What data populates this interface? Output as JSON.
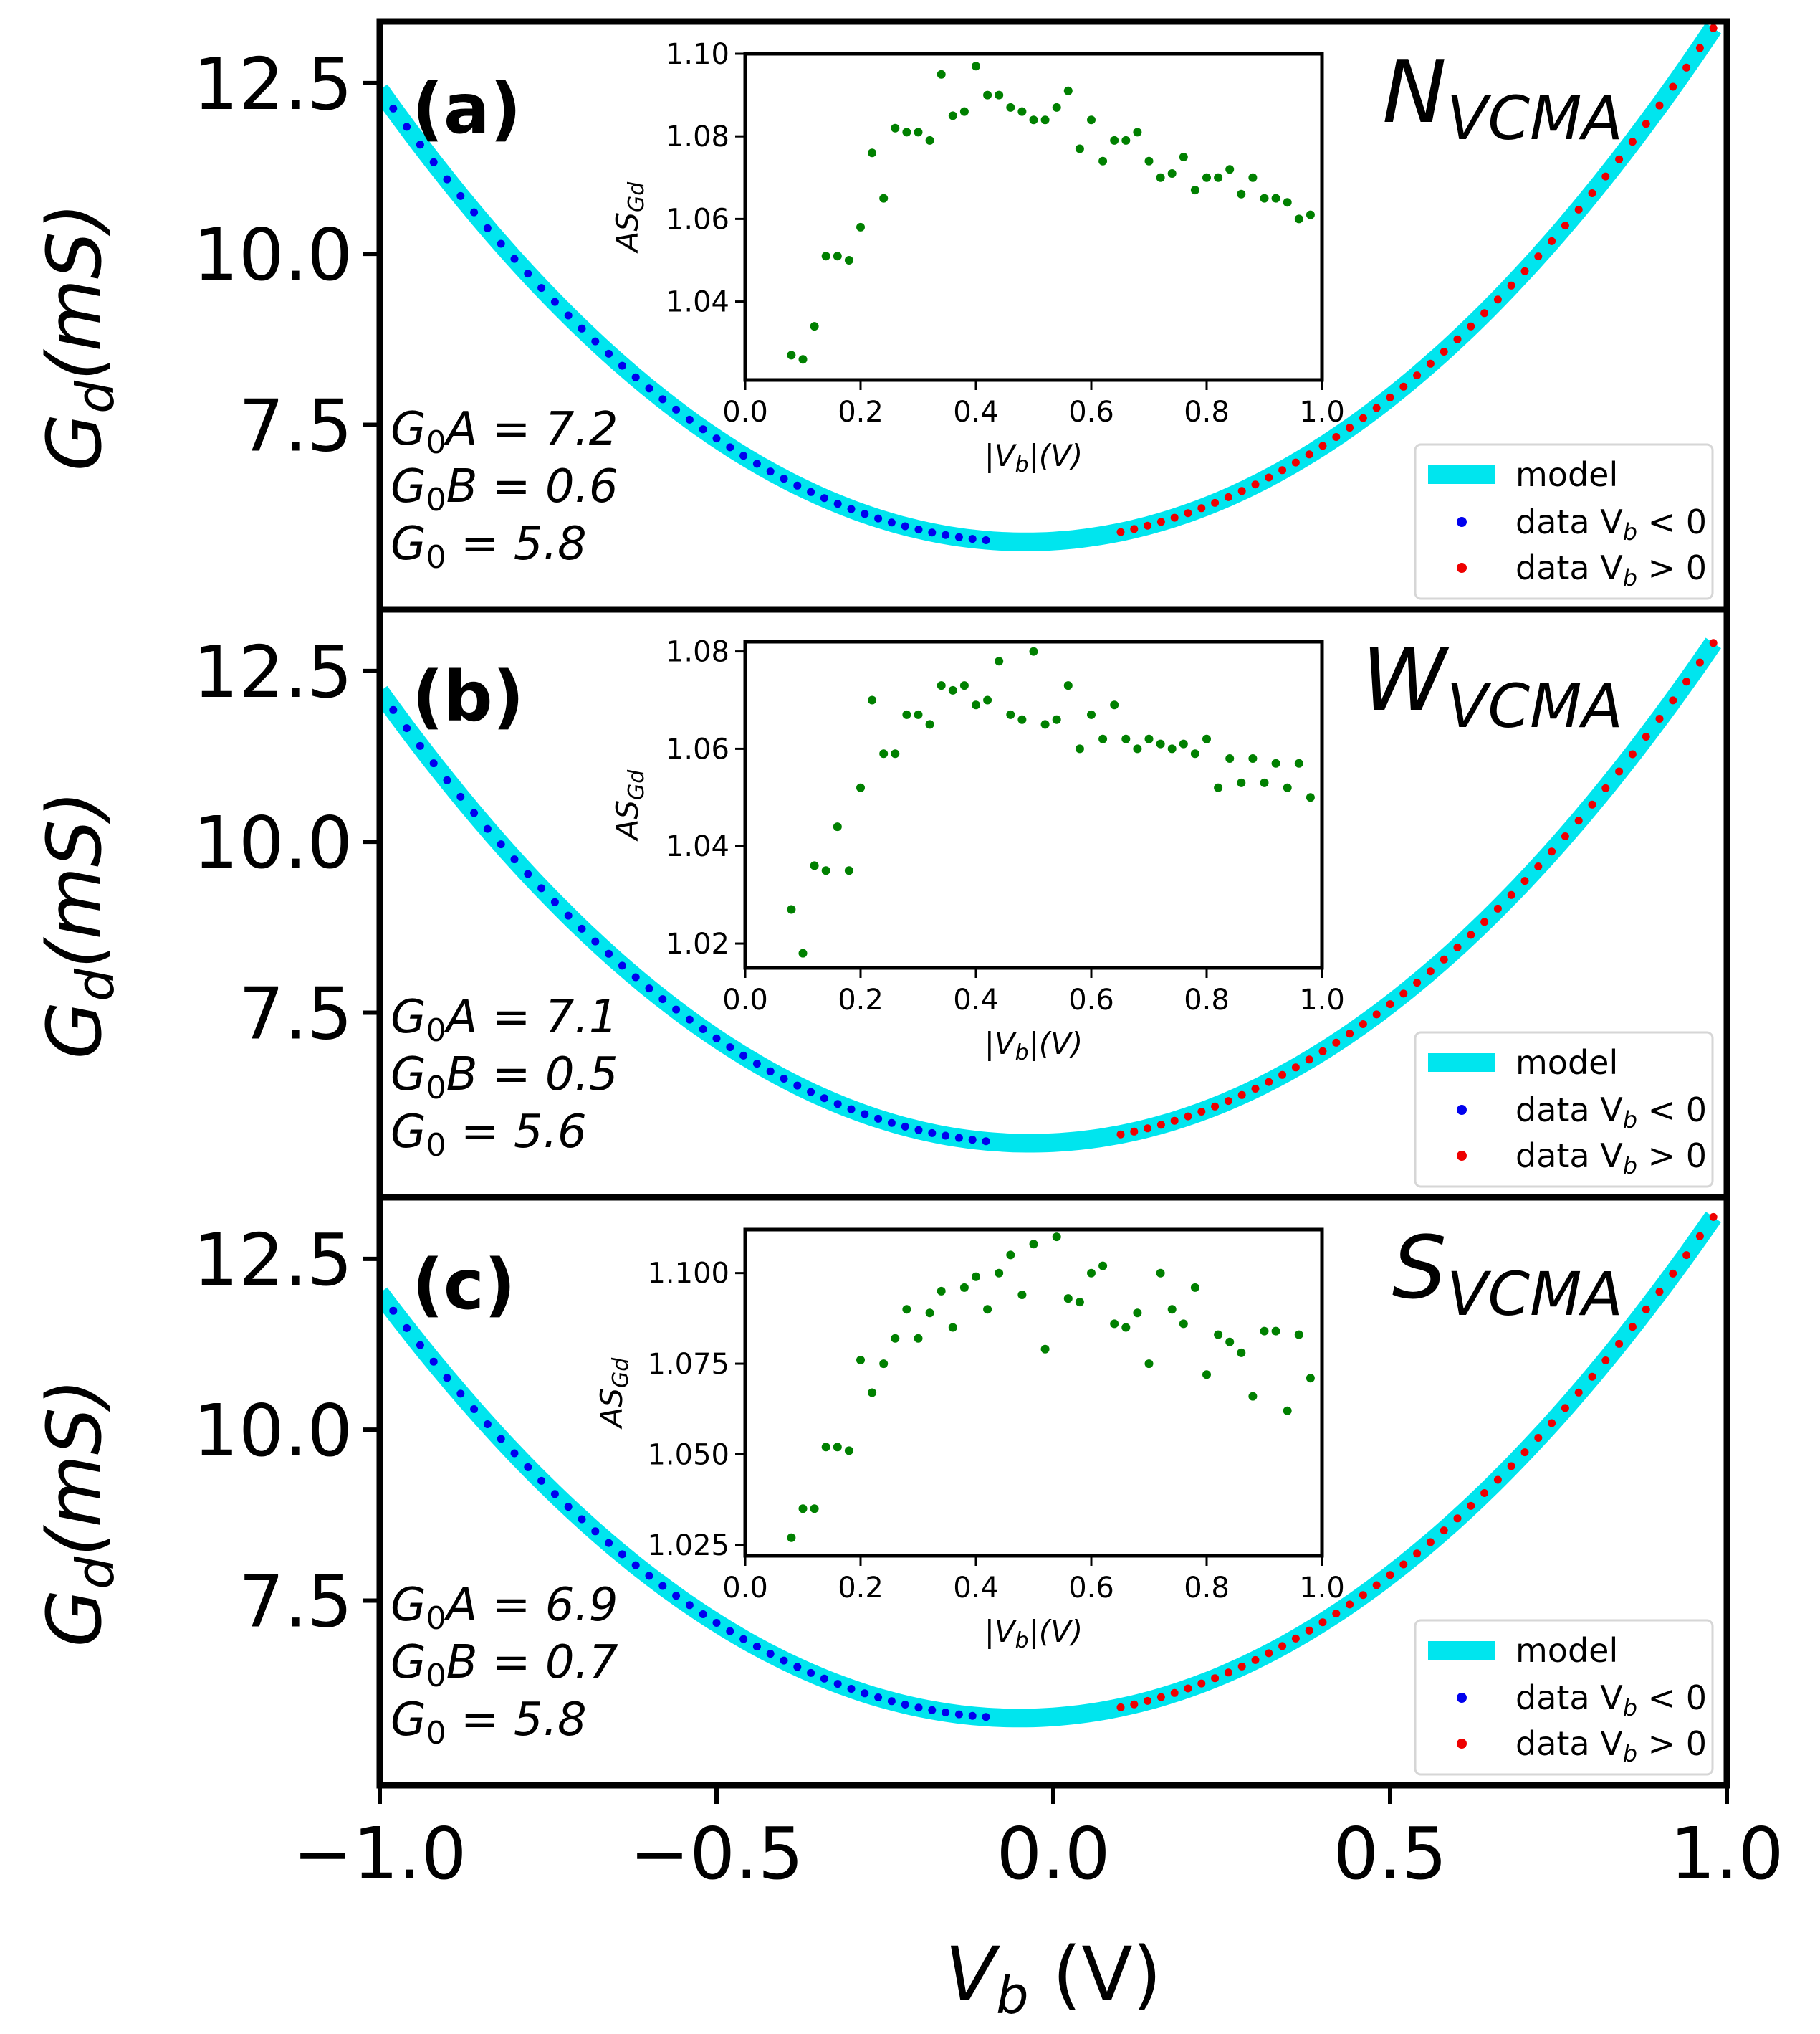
{
  "figure": {
    "xlabel_main": "V",
    "xlabel_sub": "b",
    "xlabel_unit": " (V)",
    "ylabel_main": "G",
    "ylabel_sub": "d",
    "ylabel_unit": "(mS)",
    "inset_ylabel_main": "AS",
    "inset_ylabel_sub": "Gd",
    "inset_xlabel_left": "|V",
    "inset_xlabel_sub": "b",
    "inset_xlabel_right": "|(V)",
    "legend_model": "model",
    "legend_neg_prefix": "data V",
    "legend_neg_sub": "b",
    "legend_neg_suffix": " < 0",
    "legend_pos_prefix": "data V",
    "legend_pos_sub": "b",
    "legend_pos_suffix": " > 0"
  },
  "colors": {
    "model": "#00e5ee",
    "neg": "#0000ee",
    "pos": "#ee0000",
    "inset": "#008000",
    "axis": "#000000"
  },
  "chart_data": [
    {
      "type": "scatter",
      "panel": "(a)",
      "title_main": "N",
      "title_sub": "VCMA",
      "params": [
        "G₀A = 7.2",
        "G₀B = 0.6",
        "G₀ = 5.8"
      ],
      "xlim": [
        -1.0,
        1.0
      ],
      "ylim": [
        4.8,
        13.4
      ],
      "xticks": [
        -1.0,
        -0.5,
        0.0,
        0.5,
        1.0
      ],
      "xtick_labels": [
        "−1.0",
        "−0.5",
        "0.0",
        "0.5",
        "1.0"
      ],
      "yticks": [
        7.5,
        10.0,
        12.5
      ],
      "ytick_labels": [
        "7.5",
        "10.0",
        "12.5"
      ],
      "model": {
        "G0": 5.8,
        "G0A": 7.2,
        "G0B": 0.6,
        "x_range": [
          -1.0,
          0.98
        ]
      },
      "data_neg": {
        "x_range": [
          -0.98,
          -0.1
        ],
        "n": 45
      },
      "data_pos": {
        "x_range": [
          0.1,
          0.98
        ],
        "n": 45
      },
      "inset": {
        "type": "scatter",
        "xlim": [
          0.0,
          1.0
        ],
        "ylim": [
          1.021,
          1.1
        ],
        "xticks": [
          0.0,
          0.2,
          0.4,
          0.6,
          0.8,
          1.0
        ],
        "xtick_labels": [
          "0.0",
          "0.2",
          "0.4",
          "0.6",
          "0.8",
          "1.0"
        ],
        "yticks": [
          1.04,
          1.06,
          1.08,
          1.1
        ],
        "ytick_labels": [
          "1.04",
          "1.06",
          "1.08",
          "1.10"
        ],
        "points": [
          [
            0.08,
            1.027
          ],
          [
            0.1,
            1.026
          ],
          [
            0.12,
            1.034
          ],
          [
            0.14,
            1.051
          ],
          [
            0.16,
            1.051
          ],
          [
            0.18,
            1.05
          ],
          [
            0.2,
            1.058
          ],
          [
            0.22,
            1.076
          ],
          [
            0.24,
            1.065
          ],
          [
            0.26,
            1.082
          ],
          [
            0.28,
            1.081
          ],
          [
            0.3,
            1.081
          ],
          [
            0.32,
            1.079
          ],
          [
            0.34,
            1.095
          ],
          [
            0.36,
            1.085
          ],
          [
            0.38,
            1.086
          ],
          [
            0.4,
            1.097
          ],
          [
            0.42,
            1.09
          ],
          [
            0.44,
            1.09
          ],
          [
            0.46,
            1.087
          ],
          [
            0.48,
            1.086
          ],
          [
            0.5,
            1.084
          ],
          [
            0.52,
            1.084
          ],
          [
            0.54,
            1.087
          ],
          [
            0.56,
            1.091
          ],
          [
            0.58,
            1.077
          ],
          [
            0.6,
            1.084
          ],
          [
            0.62,
            1.074
          ],
          [
            0.64,
            1.079
          ],
          [
            0.66,
            1.079
          ],
          [
            0.68,
            1.081
          ],
          [
            0.7,
            1.074
          ],
          [
            0.72,
            1.07
          ],
          [
            0.74,
            1.071
          ],
          [
            0.76,
            1.075
          ],
          [
            0.78,
            1.067
          ],
          [
            0.8,
            1.07
          ],
          [
            0.82,
            1.07
          ],
          [
            0.84,
            1.072
          ],
          [
            0.86,
            1.066
          ],
          [
            0.88,
            1.07
          ],
          [
            0.9,
            1.065
          ],
          [
            0.92,
            1.065
          ],
          [
            0.94,
            1.064
          ],
          [
            0.96,
            1.06
          ],
          [
            0.98,
            1.061
          ]
        ]
      }
    },
    {
      "type": "scatter",
      "panel": "(b)",
      "title_main": "W",
      "title_sub": "VCMA",
      "params": [
        "G₀A = 7.1",
        "G₀B = 0.5",
        "G₀ = 5.6"
      ],
      "xlim": [
        -1.0,
        1.0
      ],
      "ylim": [
        4.8,
        13.4
      ],
      "xticks": [
        -1.0,
        -0.5,
        0.0,
        0.5,
        1.0
      ],
      "xtick_labels": [
        "−1.0",
        "−0.5",
        "0.0",
        "0.5",
        "1.0"
      ],
      "yticks": [
        7.5,
        10.0,
        12.5
      ],
      "ytick_labels": [
        "7.5",
        "10.0",
        "12.5"
      ],
      "model": {
        "G0": 5.6,
        "G0A": 7.1,
        "G0B": 0.5,
        "x_range": [
          -1.0,
          0.98
        ]
      },
      "data_neg": {
        "x_range": [
          -0.98,
          -0.1
        ],
        "n": 45
      },
      "data_pos": {
        "x_range": [
          0.1,
          0.98
        ],
        "n": 45
      },
      "inset": {
        "type": "scatter",
        "xlim": [
          0.0,
          1.0
        ],
        "ylim": [
          1.015,
          1.082
        ],
        "xticks": [
          0.0,
          0.2,
          0.4,
          0.6,
          0.8,
          1.0
        ],
        "xtick_labels": [
          "0.0",
          "0.2",
          "0.4",
          "0.6",
          "0.8",
          "1.0"
        ],
        "yticks": [
          1.02,
          1.04,
          1.06,
          1.08
        ],
        "ytick_labels": [
          "1.02",
          "1.04",
          "1.06",
          "1.08"
        ],
        "points": [
          [
            0.08,
            1.027
          ],
          [
            0.1,
            1.018
          ],
          [
            0.12,
            1.036
          ],
          [
            0.14,
            1.035
          ],
          [
            0.16,
            1.044
          ],
          [
            0.18,
            1.035
          ],
          [
            0.2,
            1.052
          ],
          [
            0.22,
            1.07
          ],
          [
            0.24,
            1.059
          ],
          [
            0.26,
            1.059
          ],
          [
            0.28,
            1.067
          ],
          [
            0.3,
            1.067
          ],
          [
            0.32,
            1.065
          ],
          [
            0.34,
            1.073
          ],
          [
            0.36,
            1.072
          ],
          [
            0.38,
            1.073
          ],
          [
            0.4,
            1.069
          ],
          [
            0.42,
            1.07
          ],
          [
            0.44,
            1.078
          ],
          [
            0.46,
            1.067
          ],
          [
            0.48,
            1.066
          ],
          [
            0.5,
            1.08
          ],
          [
            0.52,
            1.065
          ],
          [
            0.54,
            1.066
          ],
          [
            0.56,
            1.073
          ],
          [
            0.58,
            1.06
          ],
          [
            0.6,
            1.067
          ],
          [
            0.62,
            1.062
          ],
          [
            0.64,
            1.069
          ],
          [
            0.66,
            1.062
          ],
          [
            0.68,
            1.06
          ],
          [
            0.7,
            1.062
          ],
          [
            0.72,
            1.061
          ],
          [
            0.74,
            1.06
          ],
          [
            0.76,
            1.061
          ],
          [
            0.78,
            1.059
          ],
          [
            0.8,
            1.062
          ],
          [
            0.82,
            1.052
          ],
          [
            0.84,
            1.058
          ],
          [
            0.86,
            1.053
          ],
          [
            0.88,
            1.058
          ],
          [
            0.9,
            1.053
          ],
          [
            0.92,
            1.057
          ],
          [
            0.94,
            1.052
          ],
          [
            0.96,
            1.057
          ],
          [
            0.98,
            1.05
          ]
        ]
      }
    },
    {
      "type": "scatter",
      "panel": "(c)",
      "title_main": "S",
      "title_sub": "VCMA",
      "params": [
        "G₀A = 6.9",
        "G₀B = 0.7",
        "G₀ = 5.8"
      ],
      "xlim": [
        -1.0,
        1.0
      ],
      "ylim": [
        4.8,
        13.4
      ],
      "xticks": [
        -1.0,
        -0.5,
        0.0,
        0.5,
        1.0
      ],
      "xtick_labels": [
        "−1.0",
        "−0.5",
        "0.0",
        "0.5",
        "1.0"
      ],
      "yticks": [
        7.5,
        10.0,
        12.5
      ],
      "ytick_labels": [
        "7.5",
        "10.0",
        "12.5"
      ],
      "model": {
        "G0": 5.8,
        "G0A": 6.9,
        "G0B": 0.7,
        "x_range": [
          -1.0,
          0.98
        ]
      },
      "data_neg": {
        "x_range": [
          -0.98,
          -0.1
        ],
        "n": 45
      },
      "data_pos": {
        "x_range": [
          0.1,
          0.98
        ],
        "n": 45
      },
      "inset": {
        "type": "scatter",
        "xlim": [
          0.0,
          1.0
        ],
        "ylim": [
          1.022,
          1.112
        ],
        "xticks": [
          0.0,
          0.2,
          0.4,
          0.6,
          0.8,
          1.0
        ],
        "xtick_labels": [
          "0.0",
          "0.2",
          "0.4",
          "0.6",
          "0.8",
          "1.0"
        ],
        "yticks": [
          1.025,
          1.05,
          1.075,
          1.1
        ],
        "ytick_labels": [
          "1.025",
          "1.050",
          "1.075",
          "1.100"
        ],
        "points": [
          [
            0.08,
            1.027
          ],
          [
            0.1,
            1.035
          ],
          [
            0.12,
            1.035
          ],
          [
            0.14,
            1.052
          ],
          [
            0.16,
            1.052
          ],
          [
            0.18,
            1.051
          ],
          [
            0.2,
            1.076
          ],
          [
            0.22,
            1.067
          ],
          [
            0.24,
            1.075
          ],
          [
            0.26,
            1.082
          ],
          [
            0.28,
            1.09
          ],
          [
            0.3,
            1.082
          ],
          [
            0.32,
            1.089
          ],
          [
            0.34,
            1.095
          ],
          [
            0.36,
            1.085
          ],
          [
            0.38,
            1.096
          ],
          [
            0.4,
            1.099
          ],
          [
            0.42,
            1.09
          ],
          [
            0.44,
            1.1
          ],
          [
            0.46,
            1.105
          ],
          [
            0.48,
            1.094
          ],
          [
            0.5,
            1.108
          ],
          [
            0.52,
            1.079
          ],
          [
            0.54,
            1.11
          ],
          [
            0.56,
            1.093
          ],
          [
            0.58,
            1.092
          ],
          [
            0.6,
            1.1
          ],
          [
            0.62,
            1.102
          ],
          [
            0.64,
            1.086
          ],
          [
            0.66,
            1.085
          ],
          [
            0.68,
            1.089
          ],
          [
            0.7,
            1.075
          ],
          [
            0.72,
            1.1
          ],
          [
            0.74,
            1.09
          ],
          [
            0.76,
            1.086
          ],
          [
            0.78,
            1.096
          ],
          [
            0.8,
            1.072
          ],
          [
            0.82,
            1.083
          ],
          [
            0.84,
            1.081
          ],
          [
            0.86,
            1.078
          ],
          [
            0.88,
            1.066
          ],
          [
            0.9,
            1.084
          ],
          [
            0.92,
            1.084
          ],
          [
            0.94,
            1.062
          ],
          [
            0.96,
            1.083
          ],
          [
            0.98,
            1.071
          ]
        ]
      }
    }
  ]
}
